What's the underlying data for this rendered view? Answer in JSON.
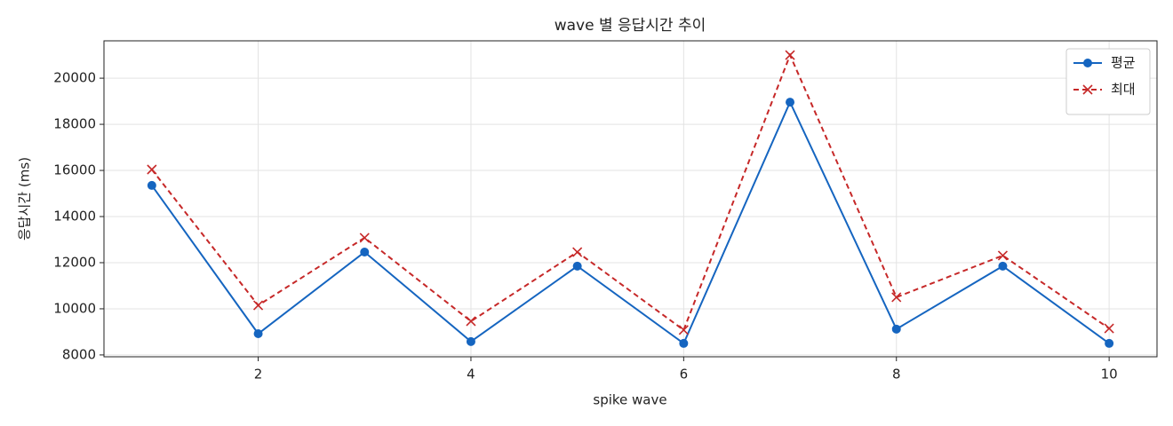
{
  "chart_data": {
    "type": "line",
    "title": "wave 별 응답시간 추이",
    "xlabel": "spike wave",
    "ylabel": "응답시간 (ms)",
    "x": [
      1,
      2,
      3,
      4,
      5,
      6,
      7,
      8,
      9,
      10
    ],
    "series": [
      {
        "name": "평균",
        "color": "#1565c0",
        "marker": "o",
        "linestyle": "-",
        "values": [
          15350,
          8920,
          12460,
          8580,
          11850,
          8500,
          18960,
          9120,
          11850,
          8500
        ]
      },
      {
        "name": "최대",
        "color": "#c62828",
        "marker": "x",
        "linestyle": "--",
        "values": [
          16040,
          10150,
          13080,
          9460,
          12460,
          9080,
          21000,
          10500,
          12310,
          9150
        ]
      }
    ],
    "xlim": [
      0.55,
      10.45
    ],
    "ylim": [
      7920,
      21620
    ],
    "xticks": [
      2,
      4,
      6,
      8,
      10
    ],
    "yticks": [
      8000,
      10000,
      12000,
      14000,
      16000,
      18000,
      20000
    ],
    "grid": true,
    "legend": "upper right"
  }
}
